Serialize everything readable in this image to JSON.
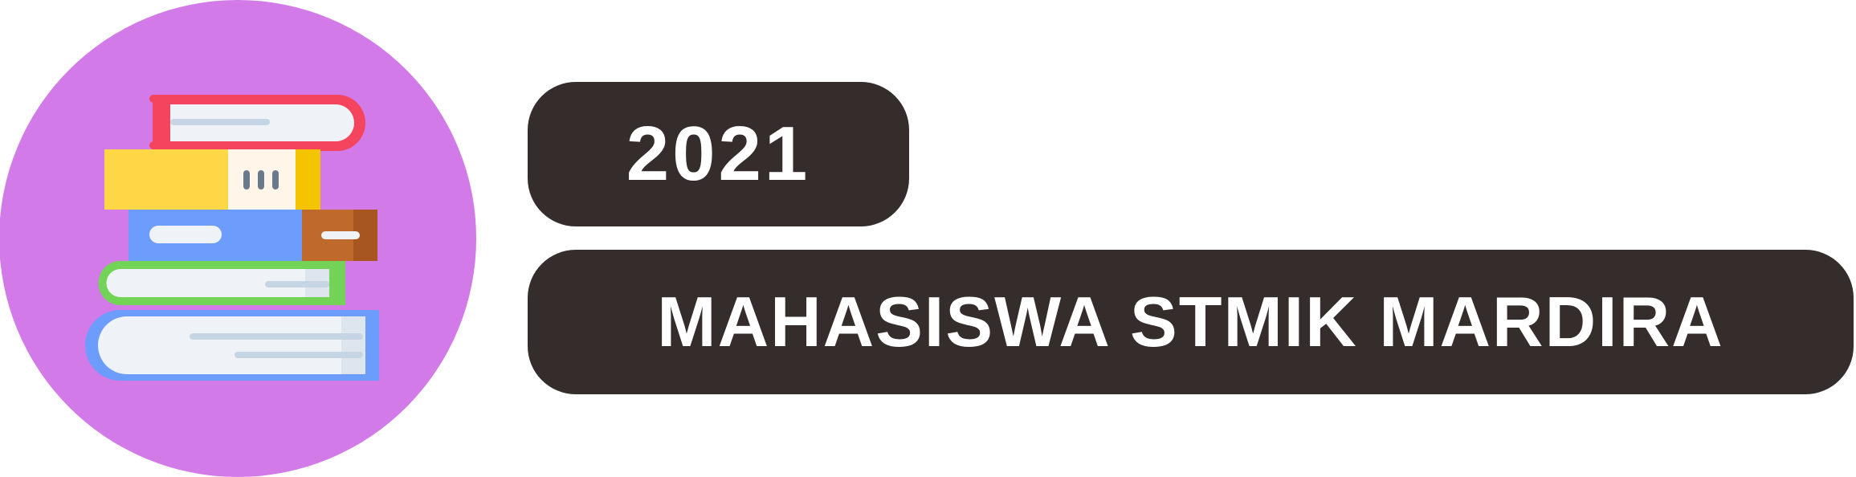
{
  "badge": {
    "year": "2021",
    "title": "MAHASISWA STMIK MARDIRA",
    "icon": "books-stack-icon"
  },
  "colors": {
    "circle": "#d17ae8",
    "pill": "#352d2c",
    "pill_text": "#ffffff",
    "book_red": "#f5445e",
    "book_yellow": "#fdd745",
    "book_blue": "#6c9cfc",
    "book_brown": "#c0692d",
    "book_green": "#72d356",
    "pages": "#eff3f7"
  }
}
